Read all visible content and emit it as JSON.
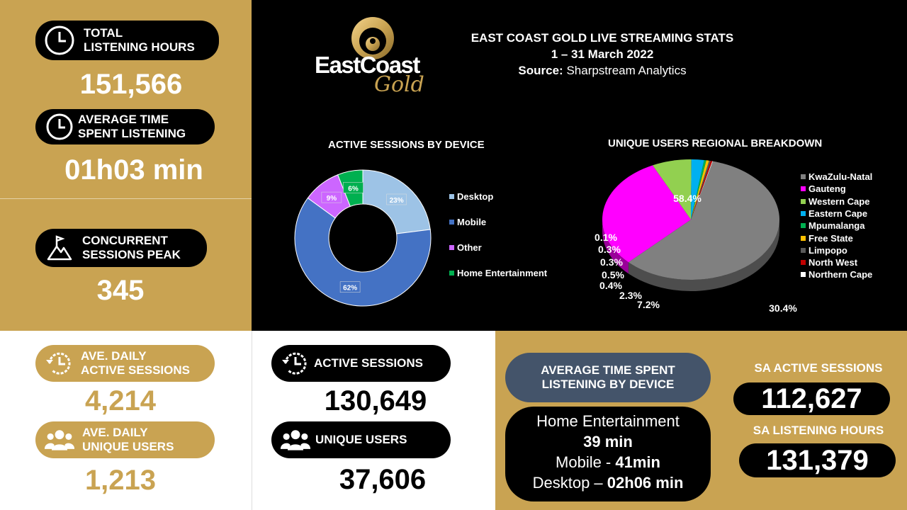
{
  "header": {
    "title": "EAST COAST GOLD LIVE STREAMING STATS",
    "date_range": "1 – 31 March 2022",
    "source_label": "Source:",
    "source_value": " Sharpstream Analytics"
  },
  "logo": {
    "line1": "EastCoast",
    "line2": "Gold"
  },
  "stats": {
    "total_hours": {
      "label1": "TOTAL",
      "label2": "LISTENING HOURS",
      "value": "151,566"
    },
    "avg_time": {
      "label1": "AVERAGE TIME",
      "label2": "SPENT LISTENING",
      "value": "01h03 min"
    },
    "concurrent": {
      "label1": "CONCURRENT",
      "label2": "SESSIONS PEAK",
      "value": "345"
    },
    "daily_sessions": {
      "label1": "AVE. DAILY",
      "label2": "ACTIVE SESSIONS",
      "value": "4,214"
    },
    "daily_users": {
      "label1": "AVE. DAILY",
      "label2": "UNIQUE USERS",
      "value": "1,213"
    },
    "active_sessions": {
      "label": "ACTIVE SESSIONS",
      "value": "130,649"
    },
    "unique_users": {
      "label": "UNIQUE USERS",
      "value": "37,606"
    }
  },
  "device_time": {
    "title1": "AVERAGE TIME  SPENT",
    "title2": "LISTENING BY DEVICE",
    "line1": "Home Entertainment",
    "line2": "39 min",
    "line3_a": "Mobile - ",
    "line3_b": "41min",
    "line4_a": "Desktop – ",
    "line4_b": "02h06 min"
  },
  "sa": {
    "sessions_label": "SA ACTIVE SESSIONS",
    "sessions_value": "112,627",
    "hours_label": "SA LISTENING HOURS",
    "hours_value": "131,379"
  },
  "colors": {
    "gold": "#C9A352",
    "slate": "#44546A"
  },
  "chart_data": [
    {
      "type": "pie",
      "variant": "donut",
      "title": "ACTIVE SESSIONS BY DEVICE",
      "legend_position": "right",
      "categories": [
        "Desktop",
        "Mobile",
        "Other",
        "Home Entertainment"
      ],
      "values": [
        23,
        62,
        9,
        6
      ],
      "labels": [
        "23%",
        "62%",
        "9%",
        "6%"
      ],
      "colors": [
        "#9DC3E6",
        "#4472C4",
        "#CC66FF",
        "#00B050"
      ]
    },
    {
      "type": "pie",
      "variant": "3d",
      "title": "UNIQUE USERS REGIONAL BREAKDOWN",
      "legend_position": "right",
      "categories": [
        "KwaZulu-Natal",
        "Gauteng",
        "Western Cape",
        "Eastern Cape",
        "Mpumalanga",
        "Free State",
        "Limpopo",
        "North West",
        "Northern Cape"
      ],
      "values": [
        58.4,
        30.4,
        7.2,
        2.3,
        0.4,
        0.5,
        0.3,
        0.3,
        0.1
      ],
      "labels": [
        "58.4%",
        "30.4%",
        "7.2%",
        "2.3%",
        "0.4%",
        "0.5%",
        "0.3%",
        "0.3%",
        "0.1%"
      ],
      "colors": [
        "#808080",
        "#FF00FF",
        "#92D050",
        "#00B0F0",
        "#00B050",
        "#FFC000",
        "#595959",
        "#C00000",
        "#FFFFFF"
      ]
    }
  ]
}
